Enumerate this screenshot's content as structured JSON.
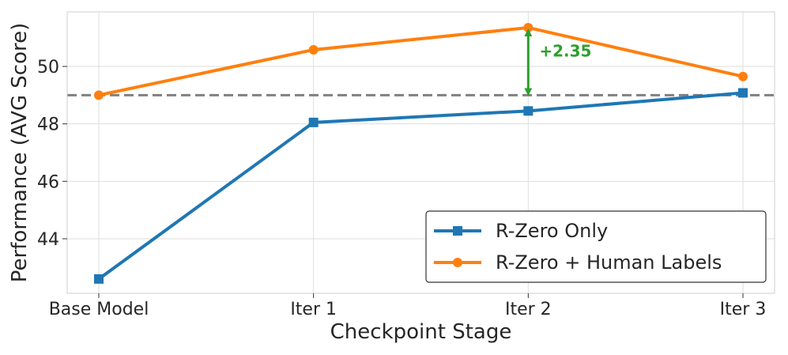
{
  "chart_data": {
    "type": "line",
    "categories": [
      "Base Model",
      "Iter 1",
      "Iter 2",
      "Iter 3"
    ],
    "series": [
      {
        "name": "R-Zero Only",
        "values": [
          42.6,
          48.05,
          48.45,
          49.08
        ],
        "color": "#1f77b4",
        "marker": "square"
      },
      {
        "name": "R-Zero + Human Labels",
        "values": [
          49.0,
          50.58,
          51.35,
          49.65
        ],
        "color": "#ff7f0e",
        "marker": "circle"
      }
    ],
    "xlabel": "Checkpoint Stage",
    "ylabel": "Performance (AVG Score)",
    "ylim": [
      42.1,
      51.9
    ],
    "yticks": [
      44,
      46,
      48,
      50
    ],
    "reference_line": {
      "y": 49.0,
      "style": "dashed",
      "color": "#808080"
    },
    "annotation": {
      "text": "+2.35",
      "category": "Iter 2",
      "from": 49.0,
      "to": 51.35,
      "color": "#2ca02c"
    },
    "legend_position": "lower-right",
    "grid": true
  }
}
